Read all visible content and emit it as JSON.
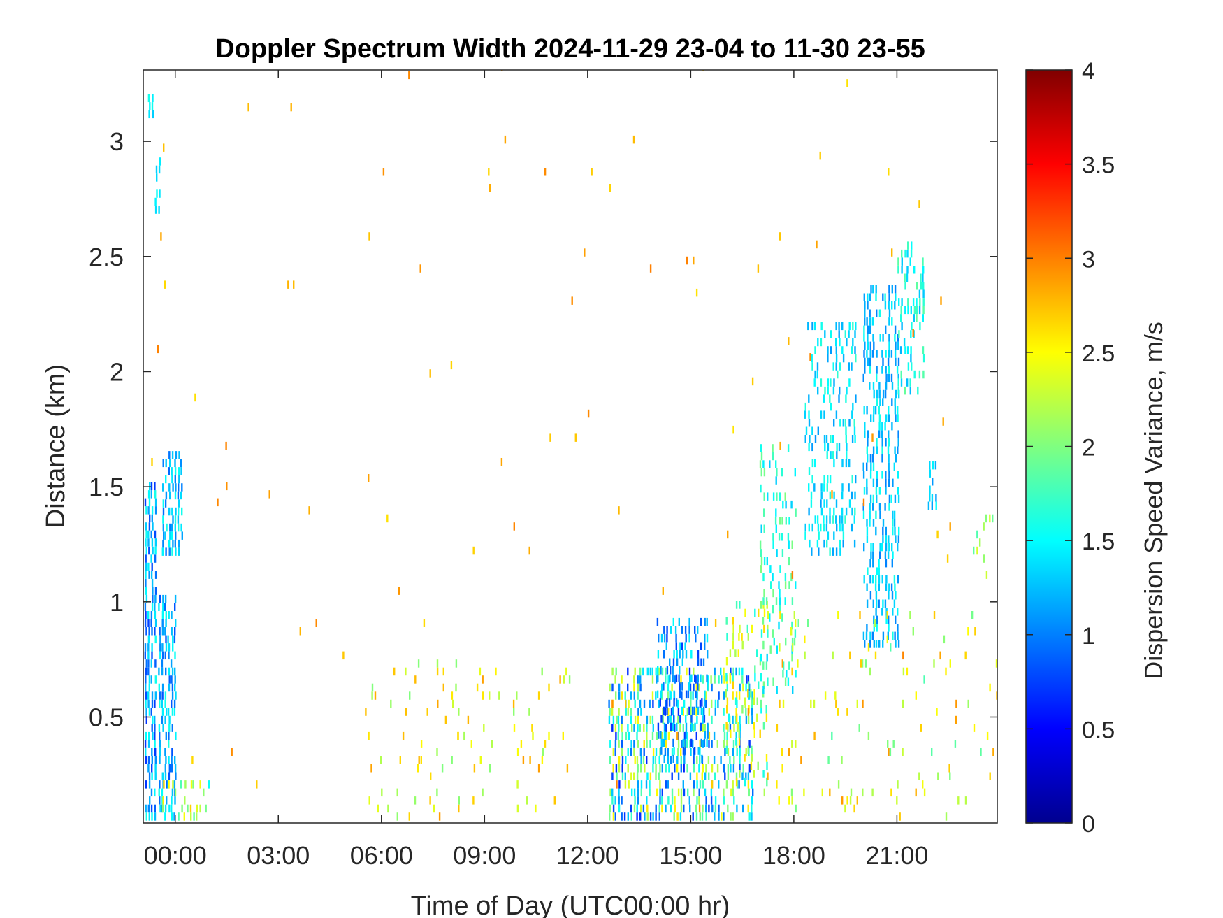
{
  "chart_data": {
    "type": "heatmap",
    "title": "Doppler Spectrum Width 2024-11-29 23-04 to 11-30 23-55",
    "xlabel": "Time of Day (UTC00:00 hr)",
    "ylabel": "Distance (km)",
    "colorbar_label": "Dispersion Speed Variance, m/s",
    "colormap": "jet",
    "xlim_hours": [
      -0.93,
      23.92
    ],
    "ylim_km": [
      0.04,
      3.31
    ],
    "x_ticks": [
      0,
      3,
      6,
      9,
      12,
      15,
      18,
      21
    ],
    "x_tick_labels": [
      "00:00",
      "03:00",
      "06:00",
      "09:00",
      "12:00",
      "15:00",
      "18:00",
      "21:00"
    ],
    "y_ticks": [
      0.5,
      1,
      1.5,
      2,
      2.5,
      3
    ],
    "y_tick_labels": [
      "0.5",
      "1",
      "1.5",
      "2",
      "2.5",
      "3"
    ],
    "colorbar_range": [
      0,
      4
    ],
    "colorbar_ticks": [
      0,
      0.5,
      1,
      1.5,
      2,
      2.5,
      3,
      3.5,
      4
    ],
    "colorbar_tick_labels": [
      "0",
      "0.5",
      "1",
      "1.5",
      "2",
      "2.5",
      "3",
      "3.5",
      "4"
    ],
    "grid": false,
    "regions": [
      {
        "t": [
          -0.9,
          -0.6
        ],
        "z": [
          0.05,
          1.5
        ],
        "v": [
          0.7,
          1.6
        ],
        "density": 0.75
      },
      {
        "t": [
          -0.5,
          0.0
        ],
        "z": [
          0.05,
          1.0
        ],
        "v": [
          0.8,
          1.6
        ],
        "density": 0.65
      },
      {
        "t": [
          -0.4,
          0.2
        ],
        "z": [
          1.2,
          1.65
        ],
        "v": [
          0.9,
          1.6
        ],
        "density": 0.6
      },
      {
        "t": [
          -0.4,
          1.0
        ],
        "z": [
          0.05,
          0.2
        ],
        "v": [
          1.5,
          2.7
        ],
        "density": 0.3
      },
      {
        "t": [
          -0.8,
          -0.7
        ],
        "z": [
          3.1,
          3.2
        ],
        "v": [
          1.3,
          1.6
        ],
        "density": 0.9
      },
      {
        "t": [
          -0.6,
          -0.5
        ],
        "z": [
          2.65,
          2.9
        ],
        "v": [
          1.3,
          1.6
        ],
        "density": 0.5
      },
      {
        "t": [
          5.5,
          11.5
        ],
        "z": [
          0.05,
          0.75
        ],
        "v": [
          2.0,
          2.9
        ],
        "density": 0.07
      },
      {
        "t": [
          12.6,
          16.8
        ],
        "z": [
          0.05,
          0.7
        ],
        "v": [
          0.6,
          2.6
        ],
        "density": 0.55
      },
      {
        "t": [
          14.0,
          15.5
        ],
        "z": [
          0.3,
          0.9
        ],
        "v": [
          0.7,
          1.5
        ],
        "density": 0.45
      },
      {
        "t": [
          16.0,
          17.2
        ],
        "z": [
          0.2,
          1.0
        ],
        "v": [
          1.5,
          2.7
        ],
        "density": 0.3
      },
      {
        "t": [
          17.0,
          18.0
        ],
        "z": [
          0.6,
          1.65
        ],
        "v": [
          1.3,
          2.0
        ],
        "density": 0.3
      },
      {
        "t": [
          18.3,
          19.8
        ],
        "z": [
          1.2,
          2.2
        ],
        "v": [
          1.1,
          1.7
        ],
        "density": 0.4
      },
      {
        "t": [
          20.0,
          21.0
        ],
        "z": [
          0.8,
          2.35
        ],
        "v": [
          1.0,
          1.6
        ],
        "density": 0.5
      },
      {
        "t": [
          21.0,
          21.8
        ],
        "z": [
          1.9,
          2.55
        ],
        "v": [
          1.2,
          1.9
        ],
        "density": 0.45
      },
      {
        "t": [
          21.9,
          22.1
        ],
        "z": [
          1.4,
          1.6
        ],
        "v": [
          1.1,
          1.6
        ],
        "density": 0.7
      },
      {
        "t": [
          17.0,
          23.9
        ],
        "z": [
          0.05,
          0.95
        ],
        "v": [
          1.8,
          2.9
        ],
        "density": 0.06
      },
      {
        "t": [
          23.2,
          23.8
        ],
        "z": [
          1.1,
          1.4
        ],
        "v": [
          1.8,
          2.5
        ],
        "density": 0.2
      },
      {
        "t": [
          -0.9,
          23.9
        ],
        "z": [
          0.05,
          3.31
        ],
        "v": [
          2.6,
          3.0
        ],
        "density": 0.004
      }
    ]
  }
}
